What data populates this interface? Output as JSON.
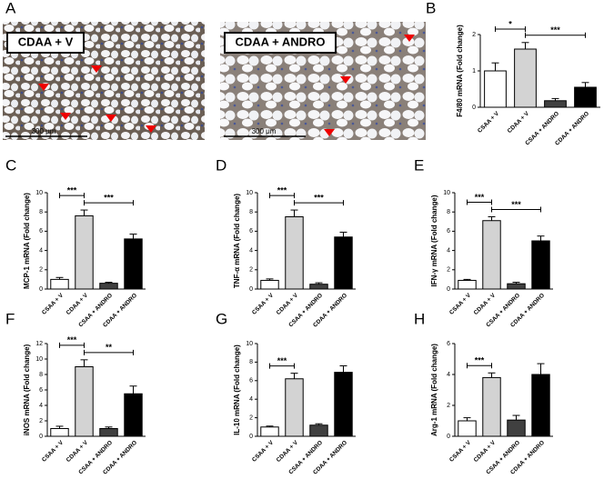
{
  "panel_a": {
    "panel": "A",
    "images": [
      {
        "label": "CDAA + V",
        "scale_bar": "300 μm"
      },
      {
        "label": "CDAA + ANDRO",
        "scale_bar": "300 μm"
      }
    ]
  },
  "chart_data": [
    {
      "type": "bar",
      "panel": "B",
      "y_label": "F4/80 mRNA (Fold change)",
      "categories": [
        "CSAA + V",
        "CDAA + V",
        "CSAA + ANDRO",
        "CDAA + ANDRO"
      ],
      "colors": [
        "#ffffff",
        "#d3d3d3",
        "#404040",
        "#000000"
      ],
      "values": [
        1.0,
        1.6,
        0.18,
        0.55
      ],
      "errors": [
        0.22,
        0.18,
        0.06,
        0.13
      ],
      "ylim": [
        0,
        2
      ],
      "yticks": [
        0,
        1,
        2
      ],
      "annotations": [
        {
          "text": "*",
          "groups": [
            0,
            1
          ]
        },
        {
          "text": "***",
          "groups": [
            1,
            3
          ]
        }
      ]
    },
    {
      "type": "bar",
      "panel": "C",
      "y_label": "MCP-1 mRNA (Fold change)",
      "categories": [
        "CSAA + V",
        "CDAA + V",
        "CSAA + ANDRO",
        "CDAA + ANDRO"
      ],
      "colors": [
        "#ffffff",
        "#d3d3d3",
        "#404040",
        "#000000"
      ],
      "values": [
        1.0,
        7.6,
        0.6,
        5.2
      ],
      "errors": [
        0.2,
        0.6,
        0.1,
        0.5
      ],
      "ylim": [
        0,
        10
      ],
      "yticks": [
        0,
        2,
        4,
        6,
        8,
        10
      ],
      "annotations": [
        {
          "text": "***",
          "groups": [
            0,
            1
          ]
        },
        {
          "text": "***",
          "groups": [
            1,
            3
          ]
        }
      ]
    },
    {
      "type": "bar",
      "panel": "D",
      "y_label": "TNF-α mRNA (Fold change)",
      "categories": [
        "CSAA + V",
        "CDAA + V",
        "CSAA + ANDRO",
        "CDAA + ANDRO"
      ],
      "colors": [
        "#ffffff",
        "#d3d3d3",
        "#404040",
        "#000000"
      ],
      "values": [
        0.9,
        7.5,
        0.5,
        5.4
      ],
      "errors": [
        0.15,
        0.7,
        0.15,
        0.5
      ],
      "ylim": [
        0,
        10
      ],
      "yticks": [
        0,
        2,
        4,
        6,
        8,
        10
      ],
      "annotations": [
        {
          "text": "***",
          "groups": [
            0,
            1
          ]
        },
        {
          "text": "***",
          "groups": [
            1,
            3
          ]
        }
      ]
    },
    {
      "type": "bar",
      "panel": "E",
      "y_label": "IFN-γ mRNA (Fold change)",
      "categories": [
        "CSAA + V",
        "CDAA + V",
        "CSAA + ANDRO",
        "CDAA + ANDRO"
      ],
      "colors": [
        "#ffffff",
        "#d3d3d3",
        "#404040",
        "#000000"
      ],
      "values": [
        0.9,
        7.1,
        0.55,
        5.0
      ],
      "errors": [
        0.1,
        0.4,
        0.15,
        0.5
      ],
      "ylim": [
        0,
        10
      ],
      "yticks": [
        0,
        2,
        4,
        6,
        8,
        10
      ],
      "annotations": [
        {
          "text": "***",
          "groups": [
            0,
            1
          ]
        },
        {
          "text": "***",
          "groups": [
            1,
            3
          ]
        }
      ]
    },
    {
      "type": "bar",
      "panel": "F",
      "y_label": "iNOS mRNA (Fold change)",
      "categories": [
        "CSAA + V",
        "CDAA + V",
        "CSAA + ANDRO",
        "CDAA + ANDRO"
      ],
      "colors": [
        "#ffffff",
        "#d3d3d3",
        "#404040",
        "#000000"
      ],
      "values": [
        1.0,
        9.0,
        1.0,
        5.5
      ],
      "errors": [
        0.3,
        0.9,
        0.2,
        1.0
      ],
      "ylim": [
        0,
        12
      ],
      "yticks": [
        0,
        2,
        4,
        6,
        8,
        10,
        12
      ],
      "annotations": [
        {
          "text": "***",
          "groups": [
            0,
            1
          ]
        },
        {
          "text": "**",
          "groups": [
            1,
            3
          ]
        }
      ]
    },
    {
      "type": "bar",
      "panel": "G",
      "y_label": "IL-10 mRNA (Fold change)",
      "categories": [
        "CSAA + V",
        "CDAA + V",
        "CSAA + ANDRO",
        "CDAA + ANDRO"
      ],
      "colors": [
        "#ffffff",
        "#d3d3d3",
        "#404040",
        "#000000"
      ],
      "values": [
        1.0,
        6.2,
        1.2,
        6.9
      ],
      "errors": [
        0.1,
        0.6,
        0.15,
        0.7
      ],
      "ylim": [
        0,
        10
      ],
      "yticks": [
        0,
        2,
        4,
        6,
        8,
        10
      ],
      "annotations": [
        {
          "text": "***",
          "groups": [
            0,
            1
          ]
        }
      ]
    },
    {
      "type": "bar",
      "panel": "H",
      "y_label": "Arg-1 mRNA (Fold change)",
      "categories": [
        "CSAA + V",
        "CDAA + V",
        "CSAA + ANDRO",
        "CDAA + ANDRO"
      ],
      "colors": [
        "#ffffff",
        "#d3d3d3",
        "#404040",
        "#000000"
      ],
      "values": [
        1.0,
        3.8,
        1.05,
        4.0
      ],
      "errors": [
        0.2,
        0.3,
        0.3,
        0.7
      ],
      "ylim": [
        0,
        6
      ],
      "yticks": [
        0,
        2,
        4,
        6
      ],
      "annotations": [
        {
          "text": "***",
          "groups": [
            0,
            1
          ]
        }
      ]
    }
  ]
}
